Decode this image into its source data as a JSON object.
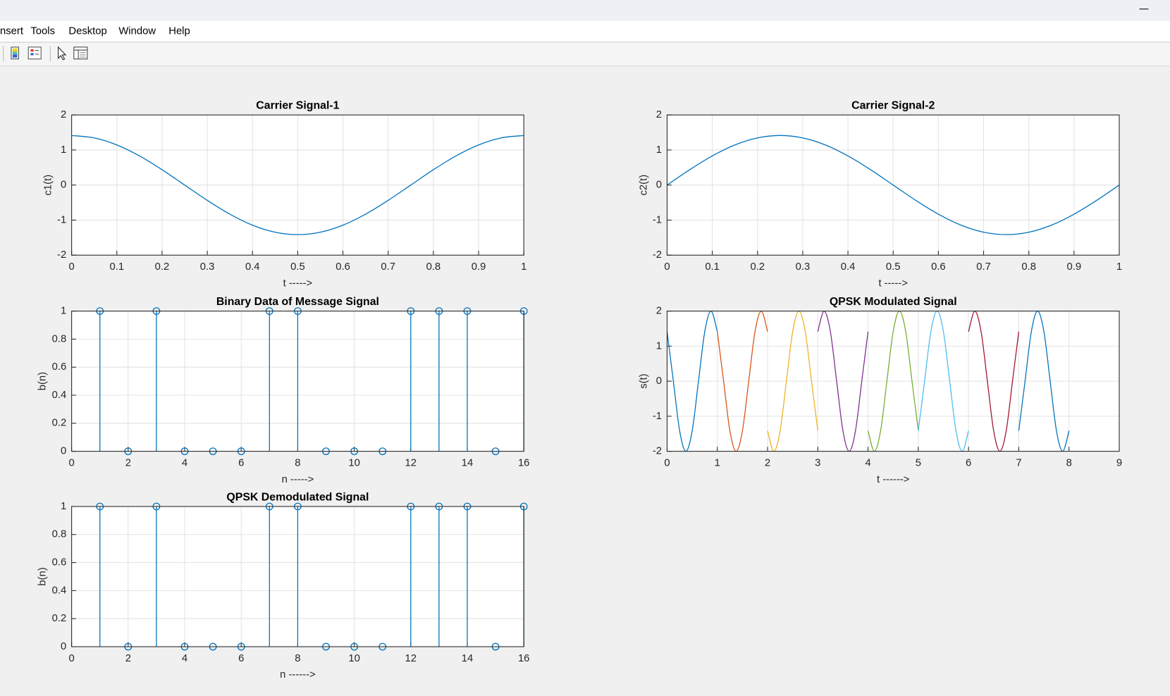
{
  "menu": [
    "nsert",
    "Tools",
    "Desktop",
    "Window",
    "Help"
  ],
  "chart_data": [
    {
      "type": "line",
      "title": "Carrier Signal-1",
      "xlabel": "t ----->",
      "ylabel": "c1(t)",
      "grid": true,
      "xlim": [
        0,
        1
      ],
      "ylim": [
        -2,
        2
      ],
      "xticks": [
        0,
        0.1,
        0.2,
        0.3,
        0.4,
        0.5,
        0.6,
        0.7,
        0.8,
        0.9,
        1
      ],
      "yticks": [
        -2,
        -1,
        0,
        1,
        2
      ],
      "x": [
        0,
        0.05,
        0.1,
        0.15,
        0.2,
        0.25,
        0.3,
        0.35,
        0.4,
        0.45,
        0.5,
        0.55,
        0.6,
        0.65,
        0.7,
        0.75,
        0.8,
        0.85,
        0.9,
        0.95,
        1
      ],
      "series": [
        {
          "color": "#0072bd",
          "values": [
            1.414,
            1.345,
            1.144,
            0.831,
            0.437,
            0,
            -0.437,
            -0.831,
            -1.144,
            -1.345,
            -1.414,
            -1.345,
            -1.144,
            -0.831,
            -0.437,
            0,
            0.437,
            0.831,
            1.144,
            1.345,
            1.414
          ]
        }
      ]
    },
    {
      "type": "line",
      "title": "Carrier Signal-2",
      "xlabel": "t ----->",
      "ylabel": "c2(t)",
      "grid": true,
      "xlim": [
        0,
        1
      ],
      "ylim": [
        -2,
        2
      ],
      "xticks": [
        0,
        0.1,
        0.2,
        0.3,
        0.4,
        0.5,
        0.6,
        0.7,
        0.8,
        0.9,
        1
      ],
      "yticks": [
        -2,
        -1,
        0,
        1,
        2
      ],
      "x": [
        0,
        0.05,
        0.1,
        0.15,
        0.2,
        0.25,
        0.3,
        0.35,
        0.4,
        0.45,
        0.5,
        0.55,
        0.6,
        0.65,
        0.7,
        0.75,
        0.8,
        0.85,
        0.9,
        0.95,
        1
      ],
      "series": [
        {
          "color": "#0072bd",
          "values": [
            0,
            0.437,
            0.831,
            1.144,
            1.345,
            1.414,
            1.345,
            1.144,
            0.831,
            0.437,
            0,
            -0.437,
            -0.831,
            -1.144,
            -1.345,
            -1.414,
            -1.345,
            -1.144,
            -0.831,
            -0.437,
            0
          ]
        }
      ]
    },
    {
      "type": "stem",
      "title": "Binary Data of Message Signal",
      "xlabel": "n ----->",
      "ylabel": "b(n)",
      "grid": true,
      "color": "#0072bd",
      "xlim": [
        0,
        16
      ],
      "ylim": [
        0,
        1
      ],
      "xticks": [
        0,
        2,
        4,
        6,
        8,
        10,
        12,
        14,
        16
      ],
      "yticks": [
        0,
        0.2,
        0.4,
        0.6,
        0.8,
        1
      ],
      "x": [
        1,
        2,
        3,
        4,
        5,
        6,
        7,
        8,
        9,
        10,
        11,
        12,
        13,
        14,
        15,
        16
      ],
      "values": [
        1,
        0,
        1,
        0,
        0,
        0,
        1,
        1,
        0,
        0,
        0,
        1,
        1,
        1,
        0,
        1
      ]
    },
    {
      "type": "line",
      "title": "QPSK Modulated Signal",
      "xlabel": "t ------>",
      "ylabel": "s(t)",
      "grid": true,
      "xlim": [
        0,
        9
      ],
      "ylim": [
        -2,
        2
      ],
      "xticks": [
        0,
        1,
        2,
        3,
        4,
        5,
        6,
        7,
        8,
        9
      ],
      "yticks": [
        -2,
        -1,
        0,
        1,
        2
      ],
      "series": [
        {
          "color": "#0072bd",
          "x": [
            0,
            0.125,
            0.25,
            0.375,
            0.5,
            0.625,
            0.75,
            0.875,
            1
          ],
          "values": [
            1.414,
            0,
            -1.414,
            -2,
            -1.414,
            0,
            1.414,
            2,
            1.414
          ]
        },
        {
          "color": "#d95319",
          "x": [
            1,
            1.125,
            1.25,
            1.375,
            1.5,
            1.625,
            1.75,
            1.875,
            2
          ],
          "values": [
            1.414,
            0,
            -1.414,
            -2,
            -1.414,
            0,
            1.414,
            2,
            1.414
          ]
        },
        {
          "color": "#edb120",
          "x": [
            2,
            2.125,
            2.25,
            2.375,
            2.5,
            2.625,
            2.75,
            2.875,
            3
          ],
          "values": [
            -1.414,
            -2,
            -1.414,
            0,
            1.414,
            2,
            1.414,
            0,
            -1.414
          ]
        },
        {
          "color": "#7e2f8e",
          "x": [
            3,
            3.125,
            3.25,
            3.375,
            3.5,
            3.625,
            3.75,
            3.875,
            4
          ],
          "values": [
            1.414,
            2,
            1.414,
            0,
            -1.414,
            -2,
            -1.414,
            0,
            1.414
          ]
        },
        {
          "color": "#77ac30",
          "x": [
            4,
            4.125,
            4.25,
            4.375,
            4.5,
            4.625,
            4.75,
            4.875,
            5
          ],
          "values": [
            -1.414,
            -2,
            -1.414,
            0,
            1.414,
            2,
            1.414,
            0,
            -1.414
          ]
        },
        {
          "color": "#4dbeee",
          "x": [
            5,
            5.125,
            5.25,
            5.375,
            5.5,
            5.625,
            5.75,
            5.875,
            6
          ],
          "values": [
            -1.414,
            0,
            1.414,
            2,
            1.414,
            0,
            -1.414,
            -2,
            -1.414
          ]
        },
        {
          "color": "#a2142f",
          "x": [
            6,
            6.125,
            6.25,
            6.375,
            6.5,
            6.625,
            6.75,
            6.875,
            7
          ],
          "values": [
            1.414,
            2,
            1.414,
            0,
            -1.414,
            -2,
            -1.414,
            0,
            1.414
          ]
        },
        {
          "color": "#0072bd",
          "x": [
            7,
            7.125,
            7.25,
            7.375,
            7.5,
            7.625,
            7.75,
            7.875,
            8
          ],
          "values": [
            -1.414,
            0,
            1.414,
            2,
            1.414,
            0,
            -1.414,
            -2,
            -1.414
          ]
        }
      ]
    },
    {
      "type": "stem",
      "title": "QPSK Demodulated Signal",
      "xlabel": "n ------>",
      "ylabel": "b(n)",
      "grid": true,
      "color": "#0072bd",
      "xlim": [
        0,
        16
      ],
      "ylim": [
        0,
        1
      ],
      "xticks": [
        0,
        2,
        4,
        6,
        8,
        10,
        12,
        14,
        16
      ],
      "yticks": [
        0,
        0.2,
        0.4,
        0.6,
        0.8,
        1
      ],
      "x": [
        1,
        2,
        3,
        4,
        5,
        6,
        7,
        8,
        9,
        10,
        11,
        12,
        13,
        14,
        15,
        16
      ],
      "values": [
        1,
        0,
        1,
        0,
        0,
        0,
        1,
        1,
        0,
        0,
        0,
        1,
        1,
        1,
        0,
        1
      ]
    }
  ]
}
